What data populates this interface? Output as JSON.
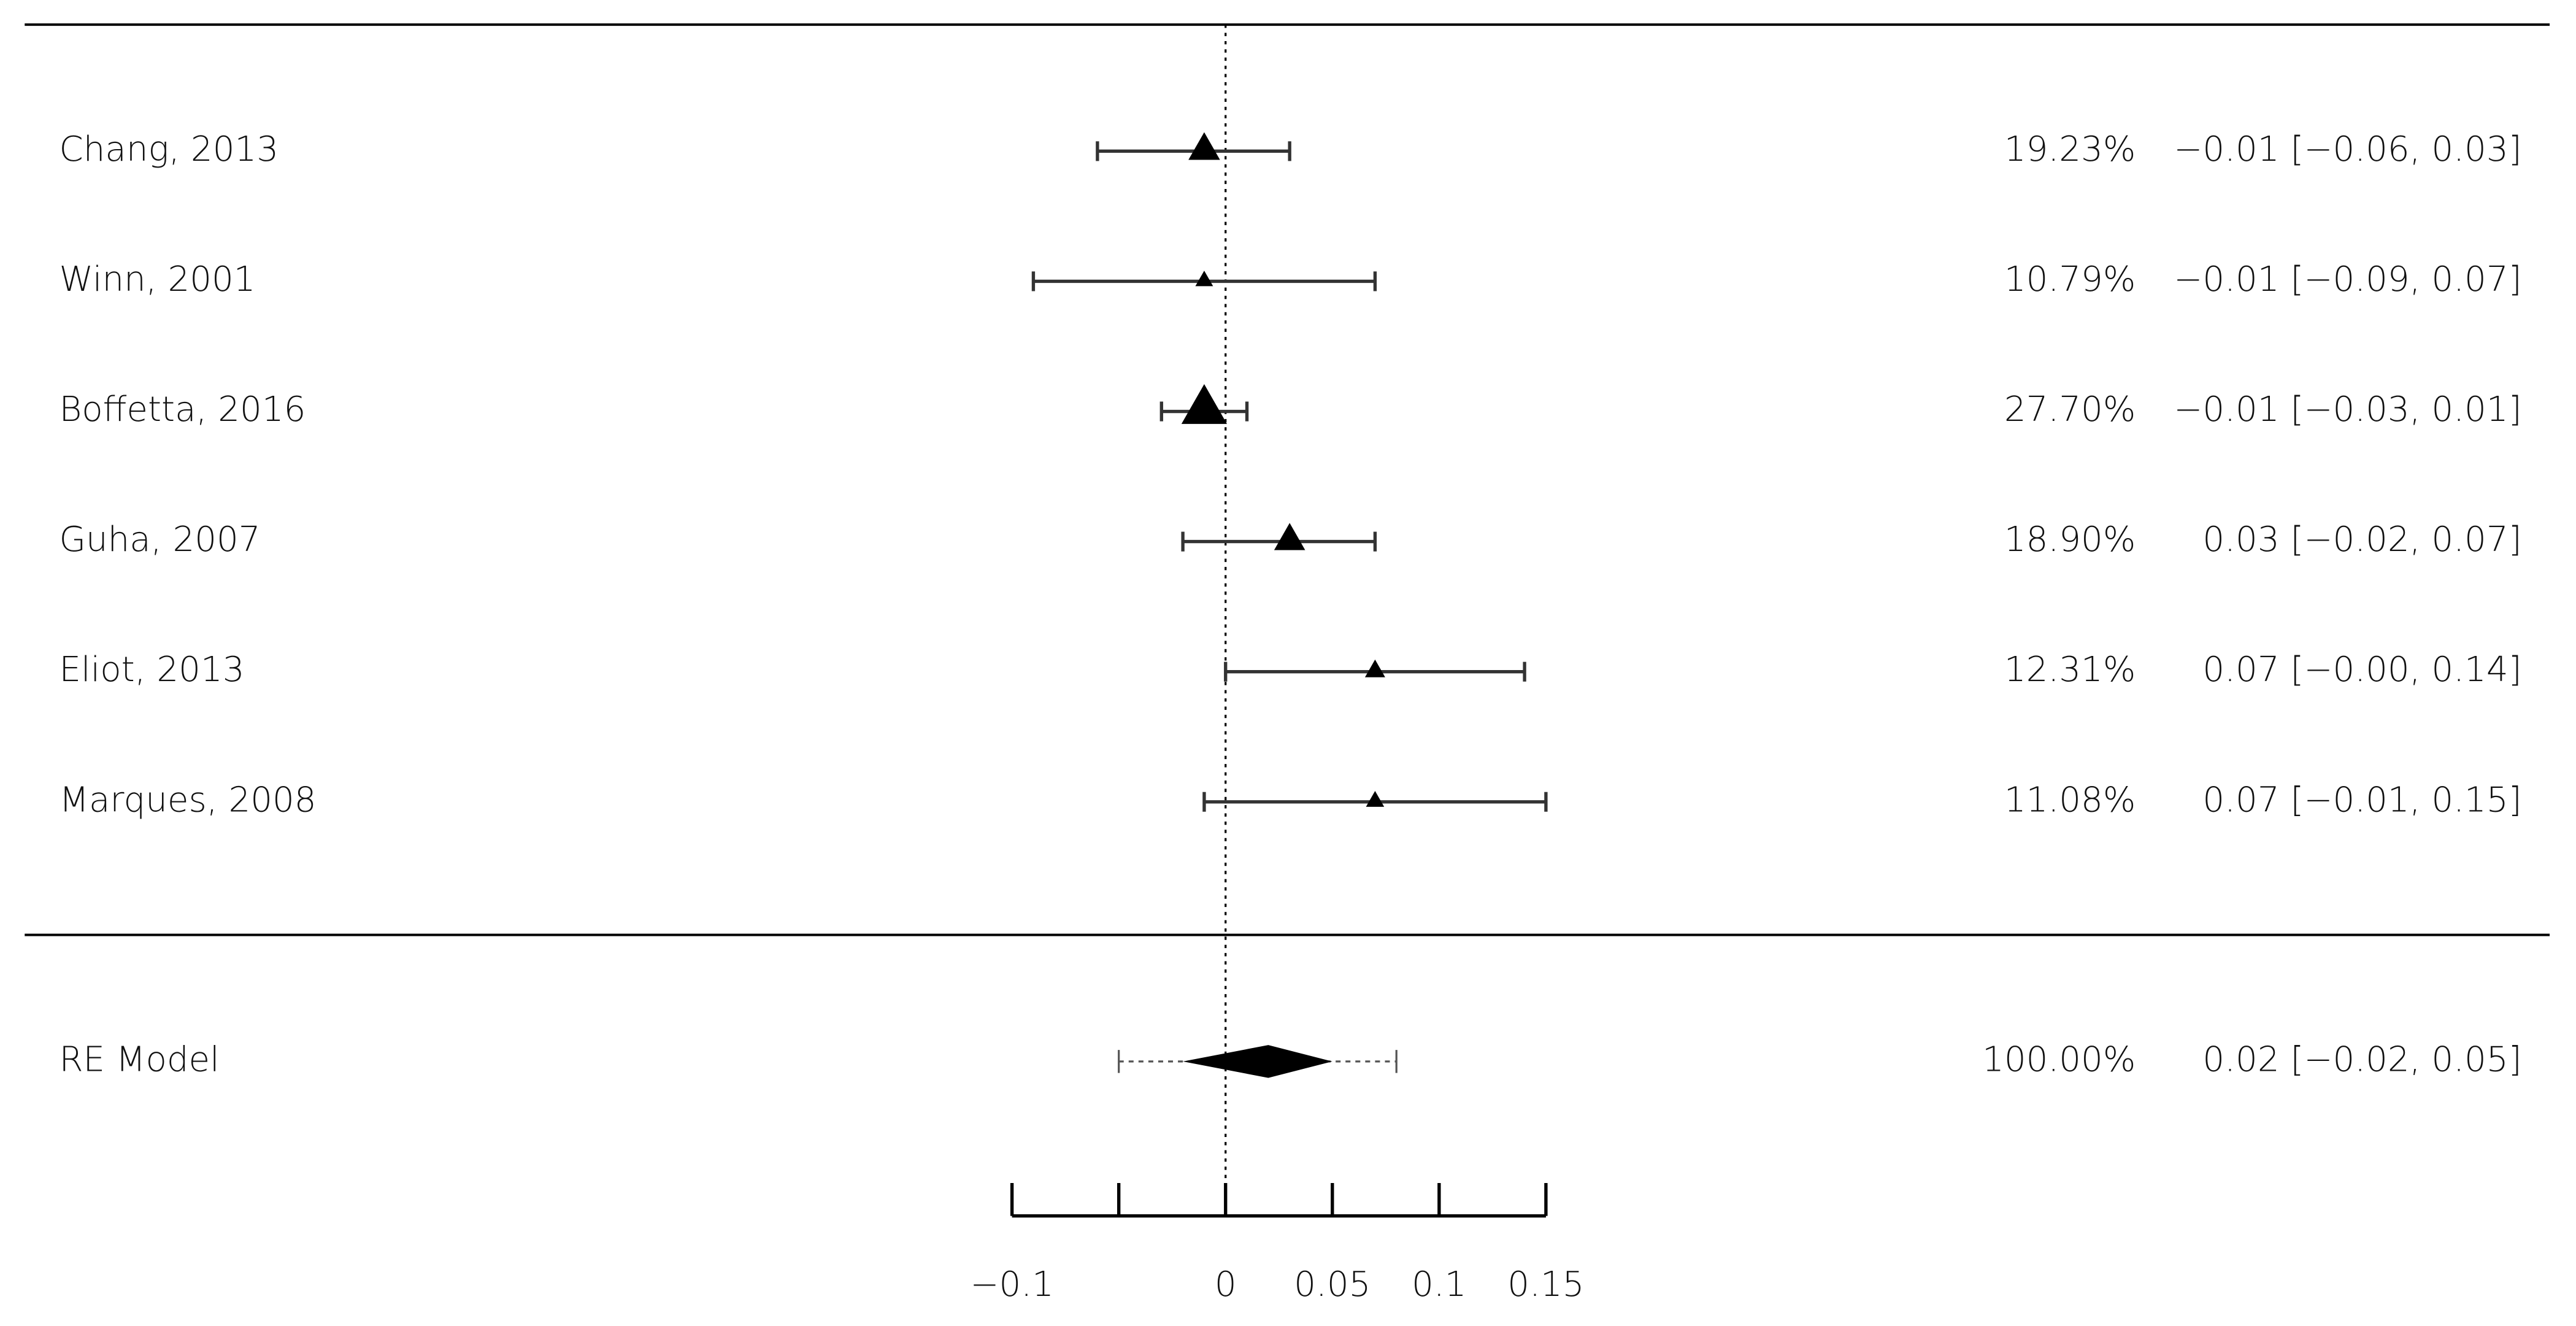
{
  "chart_data": {
    "type": "forest",
    "categories": [
      "Chang, 2013",
      "Winn, 2001",
      "Boffetta, 2016",
      "Guha, 2007",
      "Eliot, 2013",
      "Marques, 2008"
    ],
    "estimates": [
      -0.01,
      -0.01,
      -0.01,
      0.03,
      0.07,
      0.07
    ],
    "lower": [
      -0.06,
      -0.09,
      -0.03,
      -0.02,
      0.0,
      -0.01
    ],
    "upper": [
      0.03,
      0.07,
      0.01,
      0.07,
      0.14,
      0.15
    ],
    "ci_labels": [
      "−0.01 [−0.06, 0.03]",
      "−0.01 [−0.09, 0.07]",
      "−0.01 [−0.03, 0.01]",
      "0.03 [−0.02, 0.07]",
      "0.07 [−0.00, 0.14]",
      "0.07 [−0.01, 0.15]"
    ],
    "weights": [
      19.23,
      10.79,
      27.7,
      18.9,
      12.31,
      11.08
    ],
    "weight_labels": [
      "19.23%",
      "10.79%",
      "27.70%",
      "18.90%",
      "12.31%",
      "11.08%"
    ],
    "summary": {
      "label": "RE Model",
      "estimate": 0.02,
      "lower": -0.02,
      "upper": 0.05,
      "ci_label": "0.02 [−0.02, 0.05]",
      "weight": 100,
      "weight_label": "100.00%",
      "pi_lower": -0.05,
      "pi_upper": 0.08
    },
    "color": "#000000",
    "refline": 0,
    "xlim": [
      -0.1,
      0.15
    ],
    "xticks": [
      {
        "value": -0.1,
        "label": "−0.1"
      },
      {
        "value": -0.05,
        "label": null
      },
      0,
      0.05,
      0.1,
      0.15
    ]
  }
}
